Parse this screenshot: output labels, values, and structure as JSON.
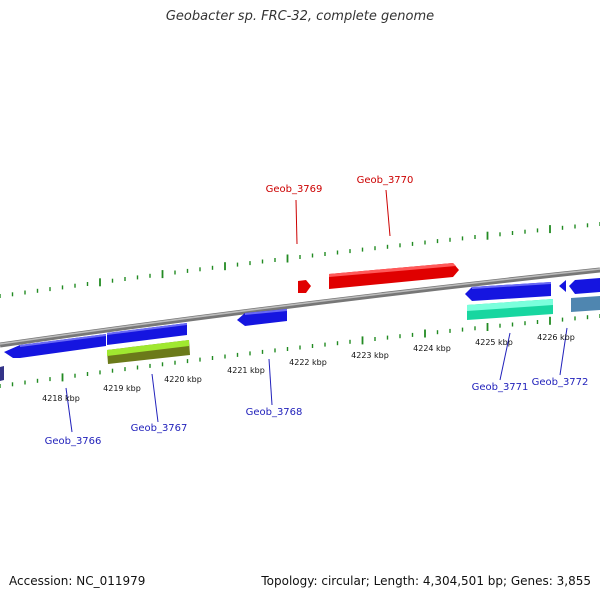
{
  "title": "Geobacter sp. FRC-32, complete genome",
  "footer": {
    "accession": "Accession: NC_011979",
    "summary": "Topology: circular; Length: 4,304,501 bp; Genes: 3,855"
  },
  "colors": {
    "forward_strand": "#e00000",
    "reverse_strand": "#1010e8",
    "backbone": "#8a8a8a",
    "ticks": "#228b22",
    "forward_label": "#cc0000",
    "reverse_label": "#2222bb"
  },
  "scale_labels": [
    "4218 kbp",
    "4219 kbp",
    "4220 kbp",
    "4221 kbp",
    "4222 kbp",
    "4223 kbp",
    "4224 kbp",
    "4225 kbp",
    "4226 kbp"
  ],
  "gene_labels": {
    "forward": [
      "Geob_3769",
      "Geob_3770"
    ],
    "reverse": [
      "Geob_3766",
      "Geob_3767",
      "Geob_3768",
      "Geob_3771",
      "Geob_3772"
    ]
  }
}
